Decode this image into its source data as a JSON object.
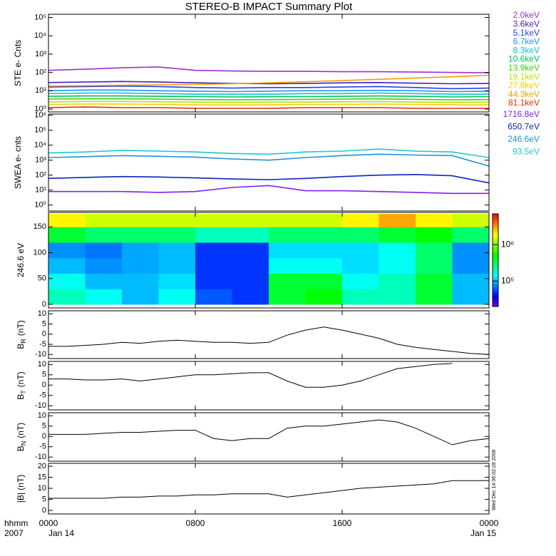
{
  "title": "STEREO-B IMPACT Summary Plot",
  "x_axis": {
    "xlim": [
      0,
      24
    ],
    "xticks": [
      {
        "value": 0,
        "label": "0000"
      },
      {
        "value": 8,
        "label": "0800"
      },
      {
        "value": 16,
        "label": "1600"
      },
      {
        "value": 24,
        "label": "0000"
      }
    ],
    "date_start": "Jan 14",
    "date_end": "Jan 15",
    "unit_label": "hhmm",
    "year": "2007"
  },
  "timestamp": "Wed Dec 14 06:02:28 2008",
  "chart_data": [
    {
      "type": "line",
      "log_scale": true,
      "ylabel": "STE e- Cnts",
      "ylim": [
        0.7,
        150000
      ],
      "yticks": [
        {
          "value": 1,
          "label": "10⁰"
        },
        {
          "value": 10,
          "label": "10¹"
        },
        {
          "value": 100,
          "label": "10²"
        },
        {
          "value": 1000,
          "label": "10³"
        },
        {
          "value": 10000,
          "label": "10⁴"
        },
        {
          "value": 100000,
          "label": "10⁵"
        }
      ],
      "x": [
        0,
        2,
        4,
        6,
        8,
        10,
        12,
        14,
        16,
        18,
        20,
        22,
        24
      ],
      "series": [
        {
          "name": "2.0keV",
          "color": "#9a30d8",
          "values": [
            130,
            150,
            180,
            200,
            130,
            120,
            115,
            115,
            110,
            110,
            105,
            100,
            95
          ]
        },
        {
          "name": "3.6keV",
          "color": "#4a1ec0",
          "values": [
            28,
            30,
            32,
            30,
            27,
            25,
            24,
            25,
            27,
            28,
            26,
            24,
            25
          ]
        },
        {
          "name": "5.1keV",
          "color": "#2840e0",
          "values": [
            16,
            17,
            18,
            17,
            15,
            14,
            15,
            15,
            16,
            17,
            15,
            13,
            14
          ]
        },
        {
          "name": "6.7keV",
          "color": "#1e90ff",
          "values": [
            10,
            11,
            11,
            10,
            9.5,
            9,
            9.5,
            10,
            10,
            10.5,
            10,
            9,
            9.5
          ]
        },
        {
          "name": "8.3keV",
          "color": "#00c8c8",
          "values": [
            7,
            7.5,
            7.5,
            7,
            6.5,
            6.5,
            6.5,
            7,
            7,
            7.5,
            7,
            6.5,
            6.5
          ]
        },
        {
          "name": "10.6keV",
          "color": "#00c060",
          "values": [
            5,
            5.2,
            5.2,
            5,
            4.8,
            4.6,
            4.7,
            4.8,
            5,
            5.2,
            5,
            4.6,
            4.8
          ]
        },
        {
          "name": "13.9keV",
          "color": "#40d000",
          "values": [
            3.5,
            3.6,
            3.6,
            3.5,
            3.3,
            3.2,
            3.3,
            3.4,
            3.5,
            3.6,
            3.4,
            3.2,
            3.3
          ]
        },
        {
          "name": "19.1keV",
          "color": "#b8e000",
          "values": [
            2.5,
            2.6,
            2.6,
            2.5,
            2.4,
            2.3,
            2.4,
            2.4,
            2.5,
            2.6,
            2.4,
            2.3,
            2.4
          ]
        },
        {
          "name": "27.8keV",
          "color": "#f0d000",
          "values": [
            1.8,
            1.9,
            1.9,
            1.8,
            1.7,
            1.7,
            1.7,
            1.8,
            1.8,
            1.9,
            1.8,
            1.7,
            1.7
          ]
        },
        {
          "name": "44.3keV",
          "color": "#f0a000",
          "values": [
            18,
            19,
            20,
            21,
            22,
            24,
            27,
            31,
            36,
            42,
            50,
            58,
            70
          ]
        },
        {
          "name": "81.1keV",
          "color": "#e03000",
          "values": [
            1.2,
            1.3,
            1.2,
            1.2,
            1.1,
            1.1,
            1.1,
            1.2,
            1.2,
            1.2,
            1.1,
            1.1,
            1.1
          ]
        }
      ]
    },
    {
      "type": "line",
      "log_scale": true,
      "ylabel": "SWEA e- cnts",
      "ylim": [
        0.4,
        1200000
      ],
      "yticks": [
        {
          "value": 1,
          "label": "10⁰"
        },
        {
          "value": 10,
          "label": "10¹"
        },
        {
          "value": 100,
          "label": "10²"
        },
        {
          "value": 1000,
          "label": "10³"
        },
        {
          "value": 10000,
          "label": "10⁴"
        },
        {
          "value": 100000,
          "label": "10⁵"
        },
        {
          "value": 1000000,
          "label": "10⁶"
        }
      ],
      "x": [
        0,
        2,
        4,
        6,
        8,
        10,
        12,
        14,
        16,
        18,
        20,
        22,
        24
      ],
      "series": [
        {
          "name": "1716.8eV",
          "color": "#8020f0",
          "values": [
            8,
            8,
            8,
            7,
            8,
            15,
            20,
            9,
            9,
            8,
            7,
            6,
            6
          ]
        },
        {
          "name": "650.7eV",
          "color": "#1020c0",
          "values": [
            60,
            70,
            80,
            75,
            65,
            55,
            50,
            60,
            80,
            100,
            110,
            90,
            30
          ]
        },
        {
          "name": "246.6eV",
          "color": "#2090e0",
          "values": [
            1500,
            1700,
            2000,
            1800,
            1600,
            1200,
            1000,
            1500,
            2000,
            2500,
            2200,
            2000,
            400
          ]
        },
        {
          "name": "93.5eV",
          "color": "#20c8c8",
          "values": [
            3000,
            3500,
            4500,
            4000,
            3500,
            2800,
            2500,
            3500,
            4000,
            5500,
            4000,
            3500,
            1500
          ]
        }
      ]
    },
    {
      "type": "heatmap",
      "ylabel": "246.6 eV",
      "ylim": [
        -7,
        178
      ],
      "yticks": [
        0,
        50,
        100,
        150
      ],
      "xbins": [
        0,
        2,
        4,
        6,
        8,
        10,
        12,
        14,
        16,
        18,
        20,
        22,
        24
      ],
      "ybins": [
        0,
        30,
        60,
        90,
        120,
        150,
        175
      ],
      "zlim": [
        20000,
        7000000
      ],
      "zticks": [
        {
          "value": 100000,
          "label": "10⁵"
        },
        {
          "value": 1000000,
          "label": "10⁶"
        }
      ],
      "z": [
        [
          200000,
          150000,
          100000,
          150000,
          60000,
          50000,
          400000,
          500000,
          200000,
          200000,
          400000,
          100000
        ],
        [
          150000,
          100000,
          100000,
          120000,
          50000,
          50000,
          400000,
          400000,
          150000,
          200000,
          400000,
          100000
        ],
        [
          100000,
          80000,
          90000,
          100000,
          50000,
          50000,
          150000,
          150000,
          120000,
          150000,
          300000,
          80000
        ],
        [
          80000,
          70000,
          90000,
          100000,
          50000,
          50000,
          120000,
          120000,
          120000,
          150000,
          300000,
          80000
        ],
        [
          400000,
          300000,
          300000,
          300000,
          200000,
          200000,
          300000,
          300000,
          300000,
          400000,
          500000,
          300000
        ],
        [
          2000000,
          1500000,
          1500000,
          1500000,
          1500000,
          1500000,
          1500000,
          1500000,
          2000000,
          3000000,
          2000000,
          1500000
        ]
      ]
    },
    {
      "type": "line",
      "ylabel": "B",
      "ylabel_subscript": "R",
      "ylabel_unit": "(nT)",
      "ylim": [
        -12,
        11.5
      ],
      "yticks": [
        -10,
        -5,
        0,
        5,
        10
      ],
      "x": [
        0,
        1,
        2,
        3,
        4,
        5,
        6,
        7,
        8,
        9,
        10,
        11,
        12,
        13,
        14,
        15,
        16,
        17,
        18,
        19,
        20,
        21,
        22,
        23,
        24
      ],
      "series": [
        {
          "color": "#000000",
          "values": [
            -6,
            -6,
            -5.5,
            -5,
            -4,
            -4.5,
            -3.5,
            -3,
            -3.5,
            -4,
            -4,
            -4.5,
            -4,
            -0.5,
            2,
            3.5,
            2,
            0,
            -2,
            -5,
            -6.5,
            -7.5,
            -8.5,
            -9.5,
            -10
          ]
        }
      ]
    },
    {
      "type": "line",
      "ylabel": "B",
      "ylabel_subscript": "T",
      "ylabel_unit": "(nT)",
      "ylim": [
        -12,
        11.5
      ],
      "yticks": [
        -10,
        -5,
        0,
        5,
        10
      ],
      "x": [
        0,
        1,
        2,
        3,
        4,
        5,
        6,
        7,
        8,
        9,
        10,
        11,
        12,
        13,
        14,
        15,
        16,
        17,
        18,
        19,
        20,
        21,
        22,
        23,
        24
      ],
      "series": [
        {
          "color": "#000000",
          "values": [
            3,
            3,
            2.5,
            2.5,
            3,
            2,
            3,
            4,
            5,
            5,
            5.5,
            6,
            6,
            2,
            -1,
            -1,
            0,
            2,
            5,
            8,
            9,
            10,
            10.5,
            null,
            null
          ]
        }
      ]
    },
    {
      "type": "line",
      "ylabel": "B",
      "ylabel_subscript": "N",
      "ylabel_unit": "(nT)",
      "ylim": [
        -12,
        11.5
      ],
      "yticks": [
        -10,
        -5,
        0,
        5,
        10
      ],
      "x": [
        0,
        1,
        2,
        3,
        4,
        5,
        6,
        7,
        8,
        9,
        10,
        11,
        12,
        13,
        14,
        15,
        16,
        17,
        18,
        19,
        20,
        21,
        22,
        23,
        24
      ],
      "series": [
        {
          "color": "#000000",
          "values": [
            1,
            1,
            1,
            1.5,
            2,
            2,
            2.5,
            3,
            3,
            -1,
            -2,
            -1,
            -1,
            4,
            5,
            5,
            6,
            7,
            8,
            7,
            4,
            0,
            -4,
            -2,
            -1
          ]
        }
      ]
    },
    {
      "type": "line",
      "ylabel": "|B| (nT)",
      "ylim": [
        -1.6,
        21.3
      ],
      "yticks": [
        0,
        5,
        10,
        15,
        20
      ],
      "x": [
        0,
        1,
        2,
        3,
        4,
        5,
        6,
        7,
        8,
        9,
        10,
        11,
        12,
        13,
        14,
        15,
        16,
        17,
        18,
        19,
        20,
        21,
        22,
        23,
        24
      ],
      "series": [
        {
          "color": "#000000",
          "values": [
            5.5,
            5.5,
            5.5,
            5.5,
            6,
            6,
            6.5,
            6.5,
            7,
            7,
            7.5,
            7.5,
            7.5,
            6,
            7,
            8,
            9,
            10,
            10.5,
            11,
            11.5,
            12,
            13.5,
            13.5,
            13.5
          ]
        }
      ]
    }
  ]
}
